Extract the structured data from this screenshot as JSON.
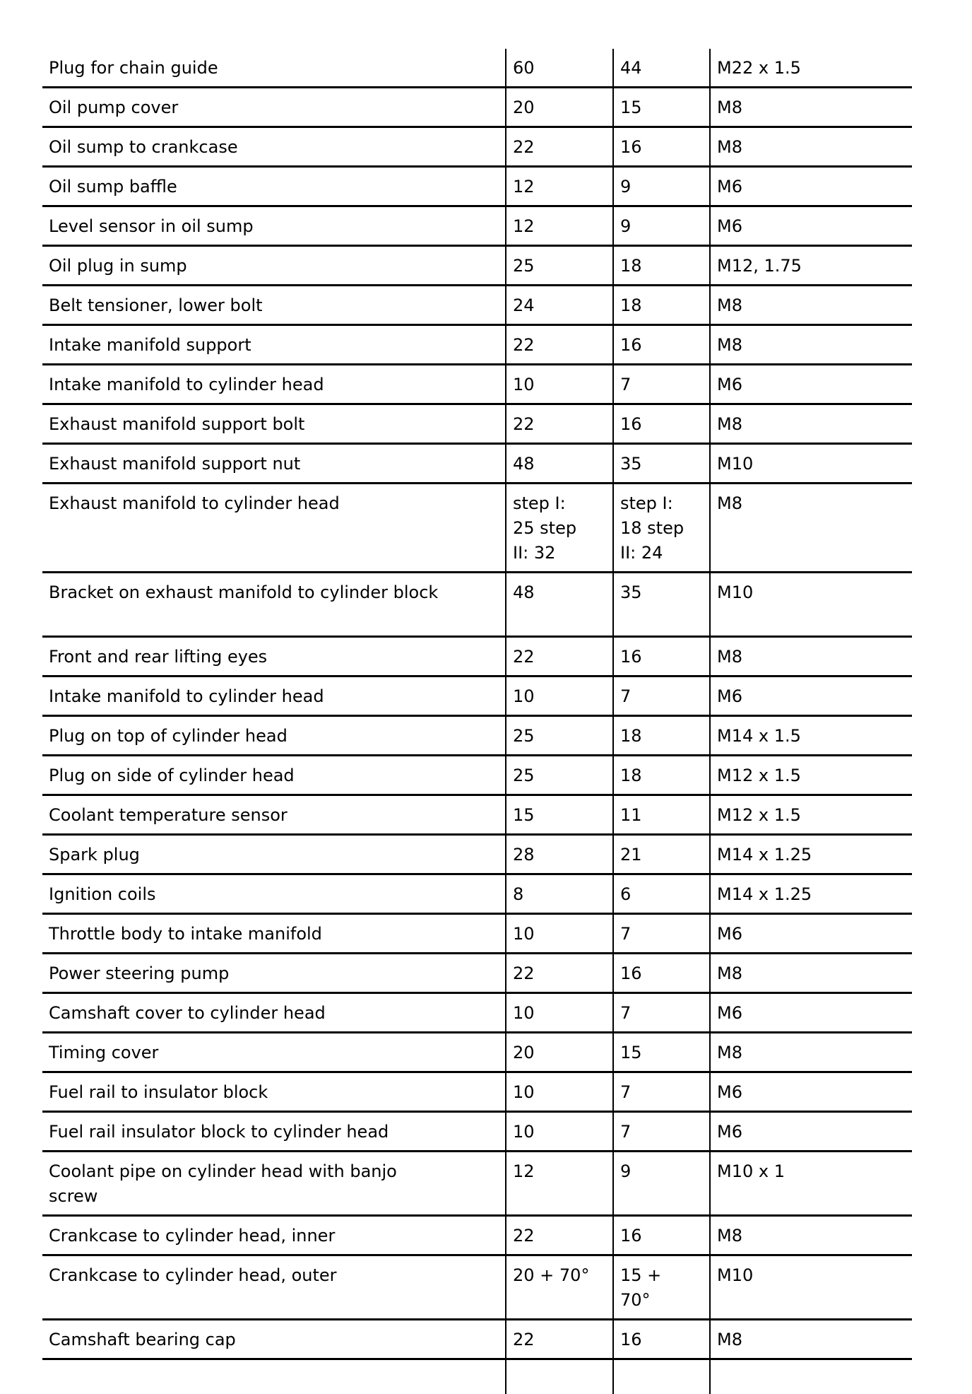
{
  "rows": [
    {
      "part": "Plug for chain guide",
      "nm": "60",
      "ftlb": "44",
      "thread": "M22 x 1.5"
    },
    {
      "part": "Oil pump cover",
      "nm": "20",
      "ftlb": "15",
      "thread": "M8"
    },
    {
      "part": "Oil sump to crankcase",
      "nm": "22",
      "ftlb": "16",
      "thread": "M8"
    },
    {
      "part": "Oil sump baffle",
      "nm": "12",
      "ftlb": "9",
      "thread": "M6"
    },
    {
      "part": "Level sensor in oil sump",
      "nm": "12",
      "ftlb": "9",
      "thread": "M6"
    },
    {
      "part": "Oil plug in sump",
      "nm": "25",
      "ftlb": "18",
      "thread": "M12, 1.75"
    },
    {
      "part": "Belt tensioner, lower bolt",
      "nm": "24",
      "ftlb": "18",
      "thread": "M8"
    },
    {
      "part": "Intake manifold support",
      "nm": "22",
      "ftlb": "16",
      "thread": "M8"
    },
    {
      "part": "Intake manifold to cylinder head",
      "nm": "10",
      "ftlb": "7",
      "thread": "M6"
    },
    {
      "part": "Exhaust manifold support bolt",
      "nm": "22",
      "ftlb": "16",
      "thread": "M8"
    },
    {
      "part": "Exhaust manifold support nut",
      "nm": "48",
      "ftlb": "35",
      "thread": "M10"
    },
    {
      "part": "Exhaust manifold to cylinder head",
      "nm": "step I:\n25 step\nII: 32",
      "ftlb": "step I:\n18 step\nII: 24",
      "thread": "M8"
    },
    {
      "part": "Bracket on exhaust manifold to cylinder block",
      "nm": "48",
      "ftlb": "35",
      "thread": "M10"
    },
    {
      "part": "Front and rear lifting eyes",
      "nm": "22",
      "ftlb": "16",
      "thread": "M8"
    },
    {
      "part": "Intake manifold to cylinder head",
      "nm": "10",
      "ftlb": "7",
      "thread": "M6"
    },
    {
      "part": "Plug on top of cylinder head",
      "nm": "25",
      "ftlb": "18",
      "thread": "M14 x 1.5"
    },
    {
      "part": "Plug on side of cylinder head",
      "nm": "25",
      "ftlb": "18",
      "thread": "M12 x 1.5"
    },
    {
      "part": "Coolant temperature sensor",
      "nm": "15",
      "ftlb": "11",
      "thread": "M12 x 1.5"
    },
    {
      "part": "Spark plug",
      "nm": "28",
      "ftlb": "21",
      "thread": "M14 x 1.25"
    },
    {
      "part": "Ignition coils",
      "nm": "8",
      "ftlb": "6",
      "thread": "M14 x 1.25"
    },
    {
      "part": "Throttle body to intake manifold",
      "nm": "10",
      "ftlb": "7",
      "thread": "M6"
    },
    {
      "part": "Power steering pump",
      "nm": "22",
      "ftlb": "16",
      "thread": "M8"
    },
    {
      "part": "Camshaft cover to cylinder head",
      "nm": "10",
      "ftlb": "7",
      "thread": "M6"
    },
    {
      "part": "Timing cover",
      "nm": "20",
      "ftlb": "15",
      "thread": "M8"
    },
    {
      "part": "Fuel rail to insulator block",
      "nm": "10",
      "ftlb": "7",
      "thread": "M6"
    },
    {
      "part": "Fuel rail insulator block to cylinder head",
      "nm": "10",
      "ftlb": "7",
      "thread": "M6"
    },
    {
      "part": "Coolant pipe on cylinder head with banjo\nscrew",
      "nm": "12",
      "ftlb": "9",
      "thread": "M10 x 1"
    },
    {
      "part": "Crankcase to cylinder head, inner",
      "nm": "22",
      "ftlb": "16",
      "thread": "M8"
    },
    {
      "part": "Crankcase to cylinder head, outer",
      "nm": "20 + 70°",
      "ftlb": "15 +\n70°",
      "thread": "M10"
    },
    {
      "part": "Camshaft bearing cap",
      "nm": "22",
      "ftlb": "16",
      "thread": "M8"
    }
  ]
}
